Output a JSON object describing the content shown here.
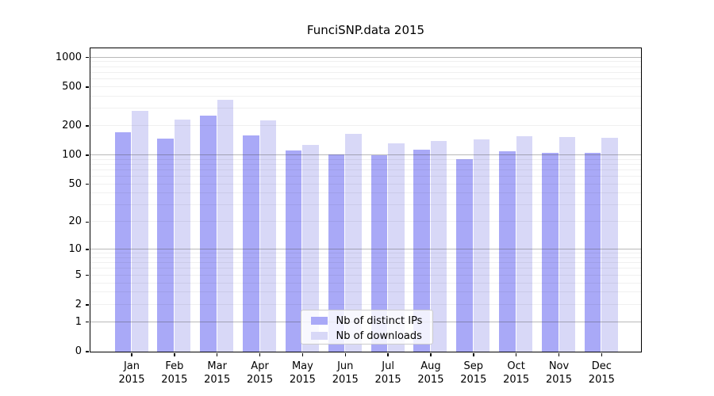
{
  "chart_data": {
    "type": "bar",
    "title": "FunciSNP.data 2015",
    "categories": [
      "Jan",
      "Feb",
      "Mar",
      "Apr",
      "May",
      "Jun",
      "Jul",
      "Aug",
      "Sep",
      "Oct",
      "Nov",
      "Dec"
    ],
    "x_tick_second_line": "2015",
    "series": [
      {
        "name": "Nb of distinct IPs",
        "color": "#a9a9f7",
        "values": [
          170,
          148,
          255,
          158,
          110,
          101,
          99,
          114,
          91,
          108,
          105,
          105
        ]
      },
      {
        "name": "Nb of downloads",
        "color": "#d8d8f7",
        "values": [
          280,
          230,
          370,
          225,
          127,
          165,
          131,
          140,
          144,
          155,
          153,
          151
        ]
      }
    ],
    "yscale": "log10(value+1)",
    "yticks": [
      0,
      1,
      2,
      5,
      10,
      20,
      50,
      100,
      200,
      500,
      1000
    ],
    "y_major_gridlines": [
      1,
      10,
      100,
      1000
    ],
    "y_minor_gridlines": [
      2,
      3,
      4,
      5,
      6,
      7,
      8,
      9,
      20,
      30,
      40,
      50,
      60,
      70,
      80,
      90,
      200,
      300,
      400,
      500,
      600,
      700,
      800,
      900
    ],
    "y_axis_top_log_value": 3.095,
    "grid": true,
    "legend_position": "inside-bottom-center",
    "axis_color": "#000000",
    "background_color": "#ffffff"
  }
}
